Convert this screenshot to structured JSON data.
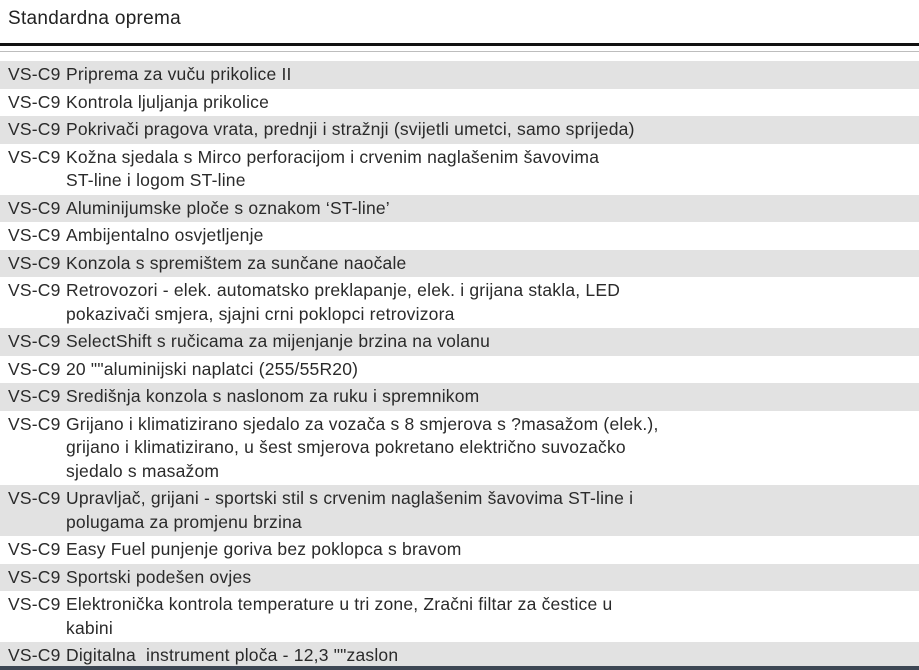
{
  "page": {
    "title": "Standardna oprema"
  },
  "colors": {
    "row_shaded": "#e2e2e2",
    "text": "#2a2a2a",
    "header_rule": "#111111",
    "bottom_rule": "#3d4754"
  },
  "table": {
    "rows": [
      {
        "code": "VS-C9",
        "shaded": true,
        "lines": [
          "Priprema za vuču prikolice II"
        ]
      },
      {
        "code": "VS-C9",
        "shaded": false,
        "lines": [
          "Kontrola ljuljanja prikolice"
        ]
      },
      {
        "code": "VS-C9",
        "shaded": true,
        "lines": [
          "Pokrivači pragova vrata, prednji i stražnji (svijetli umetci, samo sprijeda)"
        ]
      },
      {
        "code": "VS-C9",
        "shaded": false,
        "lines": [
          "Kožna sjedala s Mirco perforacijom i crvenim naglašenim šavovima",
          "ST-line i logom ST-line"
        ]
      },
      {
        "code": "VS-C9",
        "shaded": true,
        "lines": [
          "Aluminijumske ploče s oznakom ‘ST-line’"
        ]
      },
      {
        "code": "VS-C9",
        "shaded": false,
        "lines": [
          "Ambijentalno osvjetljenje"
        ]
      },
      {
        "code": "VS-C9",
        "shaded": true,
        "lines": [
          "Konzola s spremištem za sunčane naočale"
        ]
      },
      {
        "code": "VS-C9",
        "shaded": false,
        "lines": [
          "Retrovozori - elek. automatsko preklapanje, elek. i grijana stakla, LED",
          "pokazivači smjera, sjajni crni poklopci retrovizora"
        ]
      },
      {
        "code": "VS-C9",
        "shaded": true,
        "lines": [
          "SelectShift s ručicama za mijenjanje brzina na volanu"
        ]
      },
      {
        "code": "VS-C9",
        "shaded": false,
        "lines": [
          "20 \"\"aluminijski naplatci (255/55R20)"
        ]
      },
      {
        "code": "VS-C9",
        "shaded": true,
        "lines": [
          "Središnja konzola s naslonom za ruku i spremnikom"
        ]
      },
      {
        "code": "VS-C9",
        "shaded": false,
        "lines": [
          "Grijano i klimatizirano sjedalo za vozača s 8 smjerova s ?masažom (elek.),",
          "grijano i klimatizirano, u šest smjerova pokretano električno suvozačko",
          "sjedalo s masažom"
        ]
      },
      {
        "code": "VS-C9",
        "shaded": true,
        "lines": [
          "Upravljač, grijani - sportski stil s crvenim naglašenim šavovima ST-line i",
          "polugama za promjenu brzina"
        ]
      },
      {
        "code": "VS-C9",
        "shaded": false,
        "lines": [
          "Easy Fuel punjenje goriva bez poklopca s bravom"
        ]
      },
      {
        "code": "VS-C9",
        "shaded": true,
        "lines": [
          "Sportski podešen ovjes"
        ]
      },
      {
        "code": "VS-C9",
        "shaded": false,
        "lines": [
          "Elektronička kontrola temperature u tri zone, Zračni filtar za čestice u",
          "kabini"
        ]
      },
      {
        "code": "VS-C9",
        "shaded": true,
        "lines": [
          "Digitalna  instrument ploča - 12,3 \"\"zaslon"
        ]
      }
    ]
  }
}
